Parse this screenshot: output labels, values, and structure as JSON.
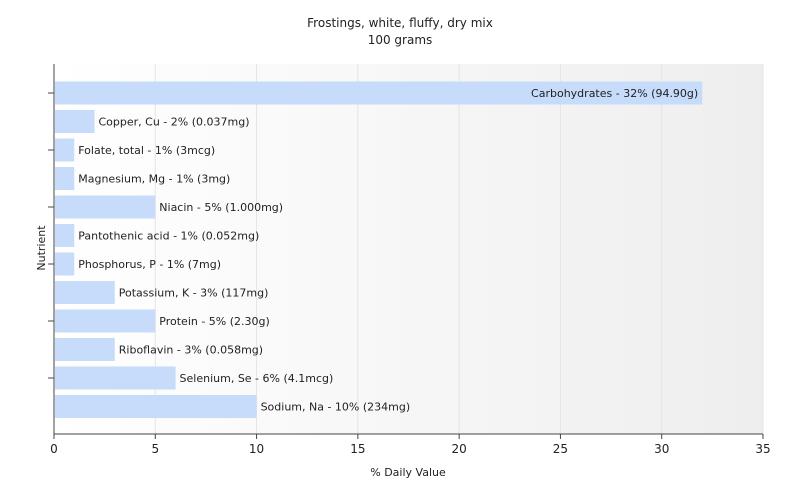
{
  "chart_data": {
    "type": "bar",
    "orientation": "horizontal",
    "title": "Frostings, white, fluffy, dry mix",
    "subtitle": "100 grams",
    "xlabel": "% Daily Value",
    "ylabel": "Nutrient",
    "xlim": [
      0,
      35
    ],
    "xticks": [
      0,
      5,
      10,
      15,
      20,
      25,
      30,
      35
    ],
    "grid": true,
    "bar_color": "#c6dcfa",
    "categories": [
      "Carbohydrates",
      "Copper, Cu",
      "Folate, total",
      "Magnesium, Mg",
      "Niacin",
      "Pantothenic acid",
      "Phosphorus, P",
      "Potassium, K",
      "Protein",
      "Riboflavin",
      "Selenium, Se",
      "Sodium, Na"
    ],
    "values": [
      32,
      2,
      1,
      1,
      5,
      1,
      1,
      3,
      5,
      3,
      6,
      10
    ],
    "labels": [
      "Carbohydrates - 32% (94.90g)",
      "Copper, Cu - 2% (0.037mg)",
      "Folate, total - 1% (3mcg)",
      "Magnesium, Mg - 1% (3mg)",
      "Niacin - 5% (1.000mg)",
      "Pantothenic acid - 1% (0.052mg)",
      "Phosphorus, P - 1% (7mg)",
      "Potassium, K - 3% (117mg)",
      "Protein - 5% (2.30g)",
      "Riboflavin - 3% (0.058mg)",
      "Selenium, Se - 6% (4.1mcg)",
      "Sodium, Na - 10% (234mg)"
    ]
  }
}
